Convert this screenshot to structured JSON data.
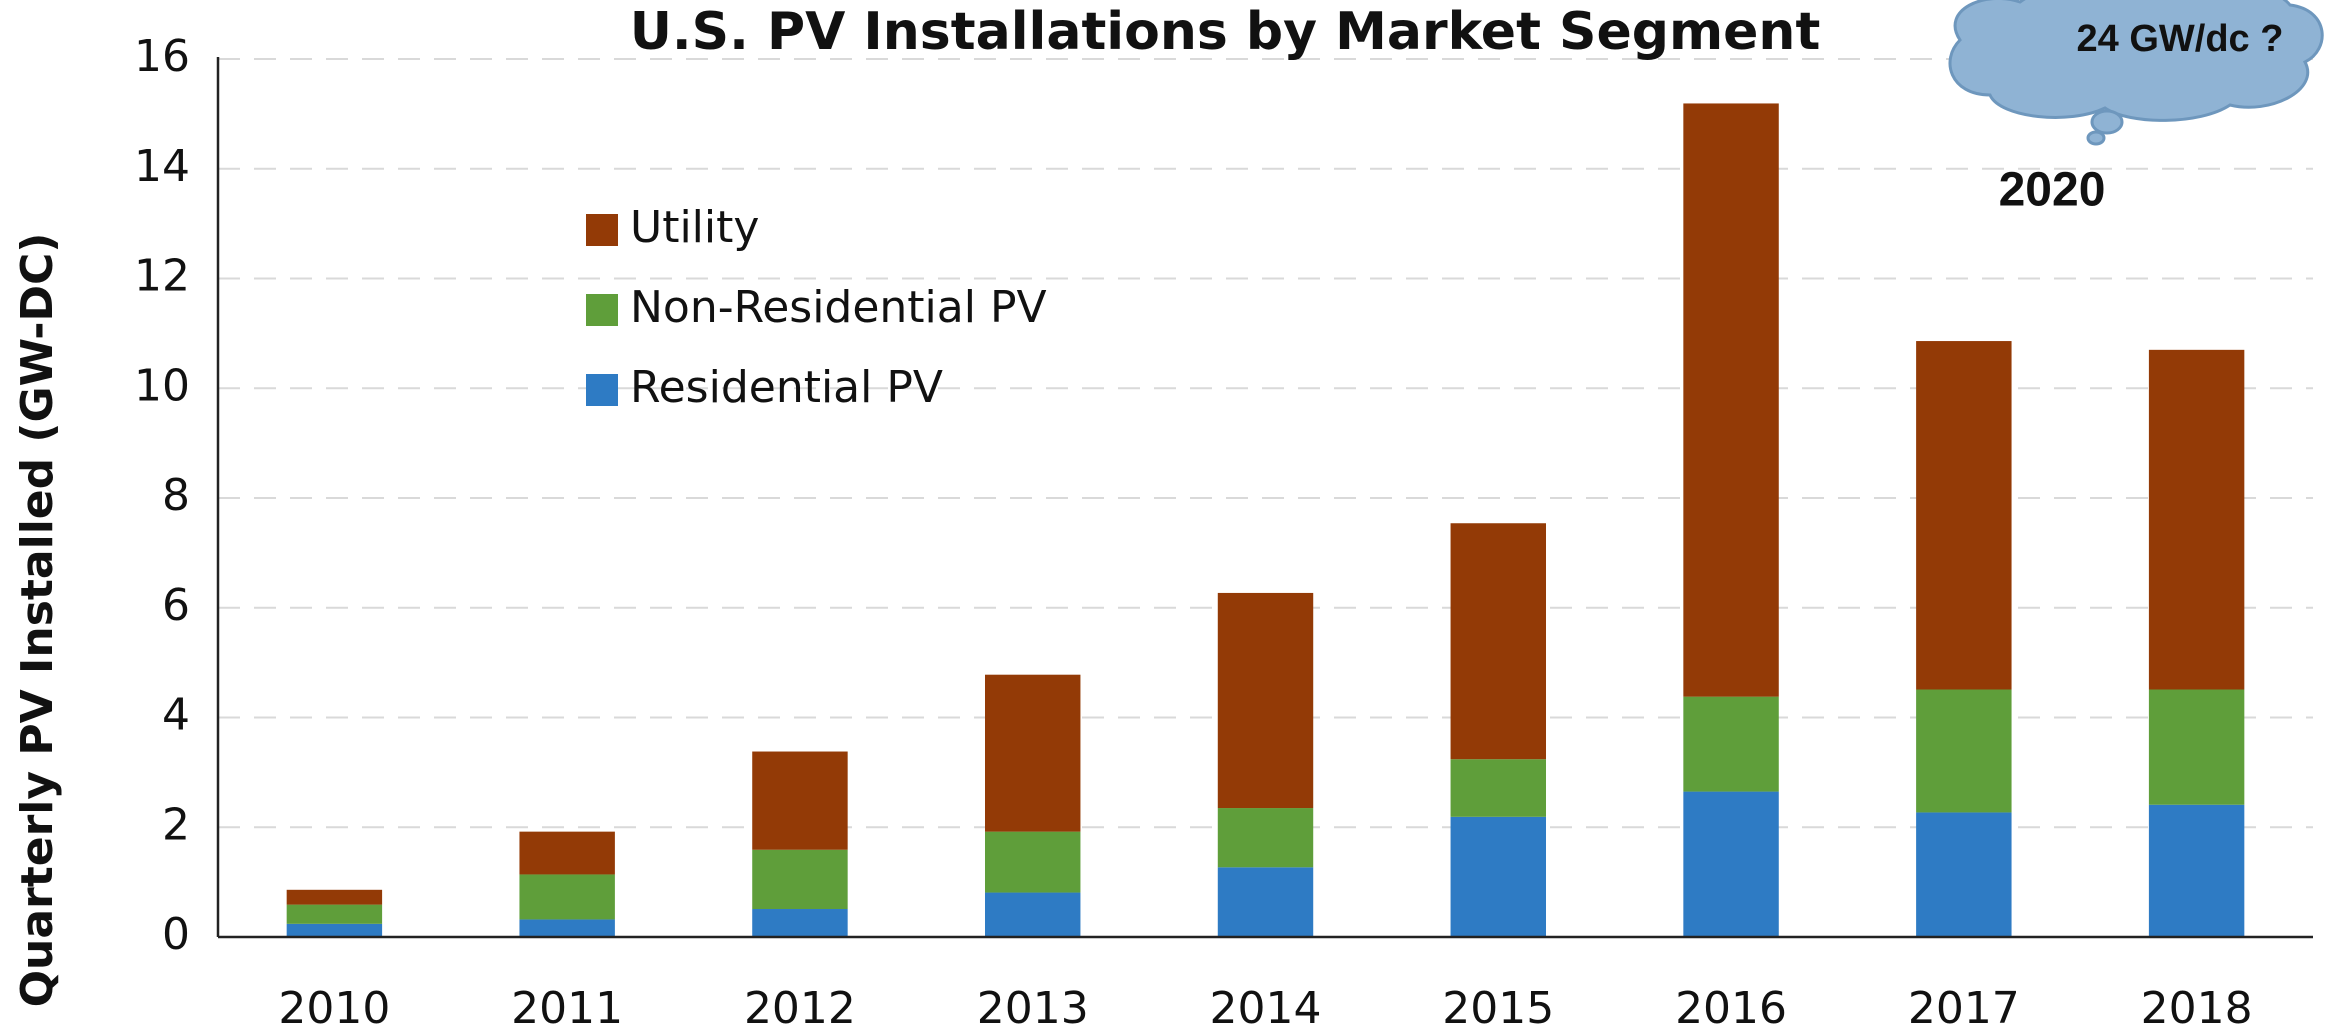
{
  "chart_data": {
    "type": "stacked_bar",
    "title": "U.S. PV Installations by Market Segment",
    "y_label": "Quarterly PV Installed (GW-DC)",
    "categories": [
      "2010",
      "2011",
      "2012",
      "2013",
      "2014",
      "2015",
      "2016",
      "2017",
      "2018"
    ],
    "series": [
      {
        "name": "Residential PV",
        "color": "#2e7bc4",
        "values": [
          0.24,
          0.32,
          0.51,
          0.81,
          1.27,
          2.19,
          2.65,
          2.27,
          2.41
        ]
      },
      {
        "name": "Non-Residential PV",
        "color": "#5f9e3a",
        "values": [
          0.35,
          0.82,
          1.08,
          1.11,
          1.08,
          1.05,
          1.73,
          2.24,
          2.1
        ]
      },
      {
        "name": "Utility",
        "color": "#933a06",
        "values": [
          0.27,
          0.78,
          1.79,
          2.86,
          3.92,
          4.3,
          10.81,
          6.35,
          6.19
        ]
      }
    ],
    "ylim": [
      0,
      16
    ],
    "yticks": [
      0,
      2,
      4,
      6,
      8,
      10,
      12,
      14,
      16
    ],
    "grid": true,
    "annotations": [
      "24 GW/dc ?",
      "2020"
    ]
  }
}
